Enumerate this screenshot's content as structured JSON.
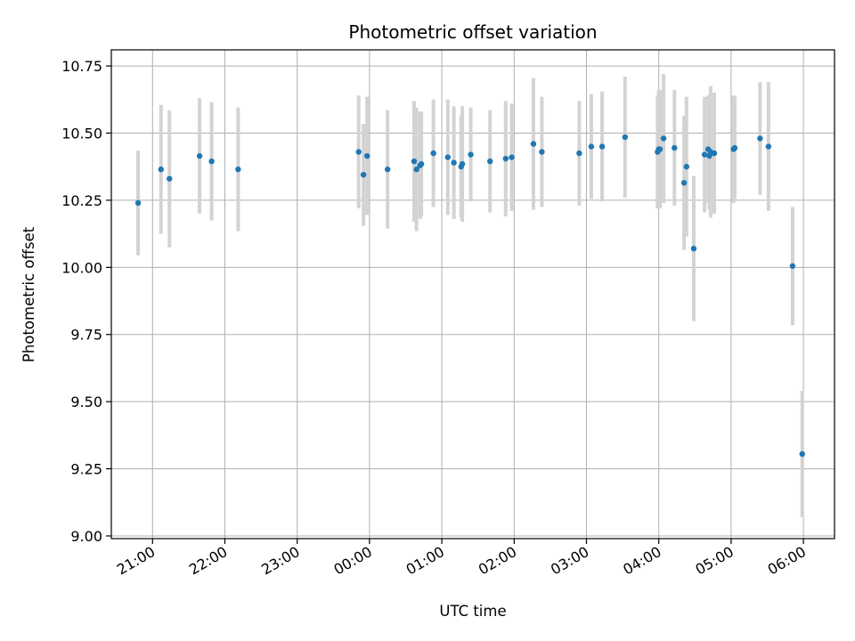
{
  "chart_data": {
    "type": "scatter",
    "title": "Photometric offset variation",
    "xlabel": "UTC time",
    "ylabel": "Photometric offset",
    "grid": true,
    "xlim_hours": [
      20.43,
      30.43
    ],
    "ylim": [
      8.99,
      10.81
    ],
    "y_ticks": [
      9.0,
      9.25,
      9.5,
      9.75,
      10.0,
      10.25,
      10.5,
      10.75
    ],
    "y_tick_labels": [
      "9.00",
      "9.25",
      "9.50",
      "9.75",
      "10.00",
      "10.25",
      "10.50",
      "10.75"
    ],
    "x_ticks_hours": [
      21,
      22,
      23,
      24,
      25,
      26,
      27,
      28,
      29,
      30
    ],
    "x_tick_labels": [
      "21:00",
      "22:00",
      "23:00",
      "00:00",
      "01:00",
      "02:00",
      "03:00",
      "04:00",
      "05:00",
      "06:00"
    ],
    "series": [
      {
        "x": [
          "20:48",
          "21:07",
          "21:14",
          "21:39",
          "21:49",
          "22:11",
          "23:51",
          "23:55",
          "23:58",
          "00:15",
          "00:37",
          "00:39",
          "00:42",
          "00:43",
          "00:53",
          "01:05",
          "01:10",
          "01:16",
          "01:17",
          "01:24",
          "01:40",
          "01:53",
          "01:58",
          "02:16",
          "02:23",
          "02:54",
          "03:04",
          "03:13",
          "03:32",
          "03:59",
          "04:00",
          "04:01",
          "04:04",
          "04:13",
          "04:21",
          "04:23",
          "04:29",
          "04:38",
          "04:41",
          "04:42",
          "04:43",
          "04:46",
          "05:02",
          "05:03",
          "05:24",
          "05:31",
          "05:51",
          "05:59"
        ],
        "y": [
          10.24,
          10.365,
          10.33,
          10.415,
          10.395,
          10.365,
          10.43,
          10.345,
          10.415,
          10.365,
          10.395,
          10.365,
          10.38,
          10.385,
          10.425,
          10.41,
          10.39,
          10.375,
          10.385,
          10.42,
          10.395,
          10.405,
          10.41,
          10.46,
          10.43,
          10.425,
          10.45,
          10.45,
          10.485,
          10.43,
          10.44,
          10.44,
          10.48,
          10.445,
          10.315,
          10.375,
          10.07,
          10.42,
          10.44,
          10.415,
          10.43,
          10.425,
          10.44,
          10.445,
          10.48,
          10.45,
          10.005,
          9.305
        ],
        "yerr": [
          0.195,
          0.24,
          0.255,
          0.215,
          0.22,
          0.23,
          0.21,
          0.19,
          0.22,
          0.22,
          0.225,
          0.23,
          0.2,
          0.195,
          0.2,
          0.215,
          0.21,
          0.19,
          0.215,
          0.175,
          0.19,
          0.215,
          0.2,
          0.245,
          0.205,
          0.195,
          0.195,
          0.205,
          0.225,
          0.21,
          0.22,
          0.22,
          0.24,
          0.215,
          0.25,
          0.26,
          0.27,
          0.215,
          0.2,
          0.2,
          0.245,
          0.225,
          0.2,
          0.19,
          0.21,
          0.24,
          0.22,
          0.235
        ]
      }
    ]
  }
}
